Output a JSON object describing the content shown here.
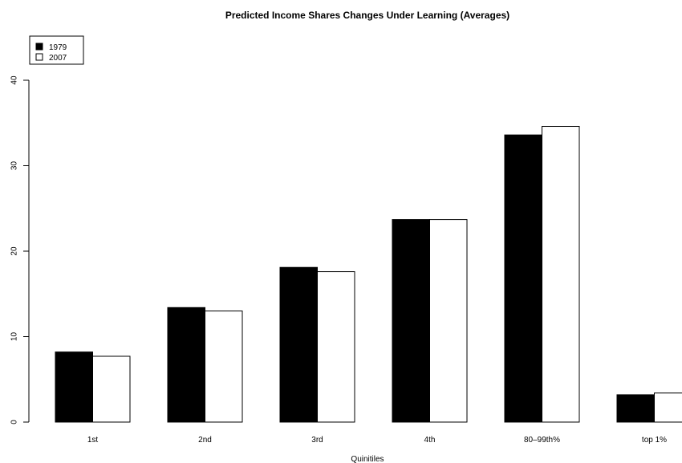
{
  "chart_data": {
    "type": "bar",
    "title": "Predicted Income Shares Changes Under Learning (Averages)",
    "xlabel": "Quinitiles",
    "ylabel": "",
    "categories": [
      "1st",
      "2nd",
      "3rd",
      "4th",
      "80–99th%",
      "top 1%"
    ],
    "series": [
      {
        "name": "1979",
        "values": [
          8.2,
          13.4,
          18.1,
          23.7,
          33.6,
          3.2
        ],
        "color": "#000000"
      },
      {
        "name": "2007",
        "values": [
          7.7,
          13.0,
          17.6,
          23.7,
          34.6,
          3.4
        ],
        "color": "#ffffff"
      }
    ],
    "ylim": [
      0,
      40
    ],
    "yticks": [
      0,
      10,
      20,
      30,
      40
    ],
    "grid": false,
    "legend_position": "top-left",
    "colors": {
      "stroke": "#000000",
      "background": "#ffffff"
    }
  }
}
